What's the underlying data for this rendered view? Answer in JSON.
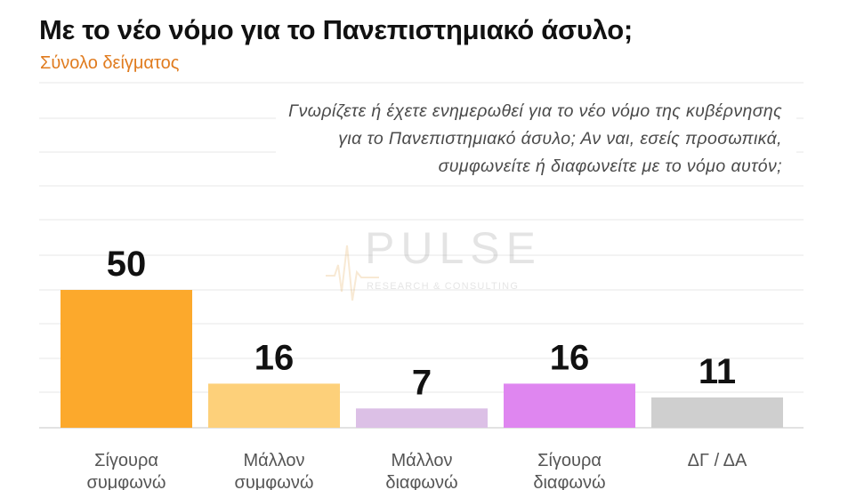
{
  "header": {
    "title": "Με το νέο νόμο για το Πανεπιστημιακό άσυλο;",
    "subtitle": "Σύνολο δείγματος"
  },
  "question": {
    "lines": [
      "Γνωρίζετε ή έχετε ενημερωθεί για το νέο νόμο της κυβέρνησης",
      "για το Πανεπιστημιακό άσυλο; Αν ναι, εσείς προσωπικά,",
      "συμφωνείτε ή διαφωνείτε με το νόμο αυτόν;"
    ]
  },
  "watermark": {
    "word": "PULSE",
    "sub": "RESEARCH & CONSULTING",
    "color": "#8a8a8a"
  },
  "chart_data": {
    "type": "bar",
    "categories": [
      [
        "Σίγουρα",
        "συμφωνώ"
      ],
      [
        "Μάλλον",
        "συμφωνώ"
      ],
      [
        "Μάλλον",
        "διαφωνώ"
      ],
      [
        "Σίγουρα",
        "διαφωνώ"
      ],
      [
        "ΔΓ / ΔΑ"
      ]
    ],
    "values": [
      50,
      16,
      7,
      16,
      11
    ],
    "colors": [
      "#fca92c",
      "#fdd07a",
      "#dcc0e6",
      "#df86f0",
      "#cfcfcf"
    ],
    "ylim": [
      0,
      50
    ],
    "grid": true
  }
}
